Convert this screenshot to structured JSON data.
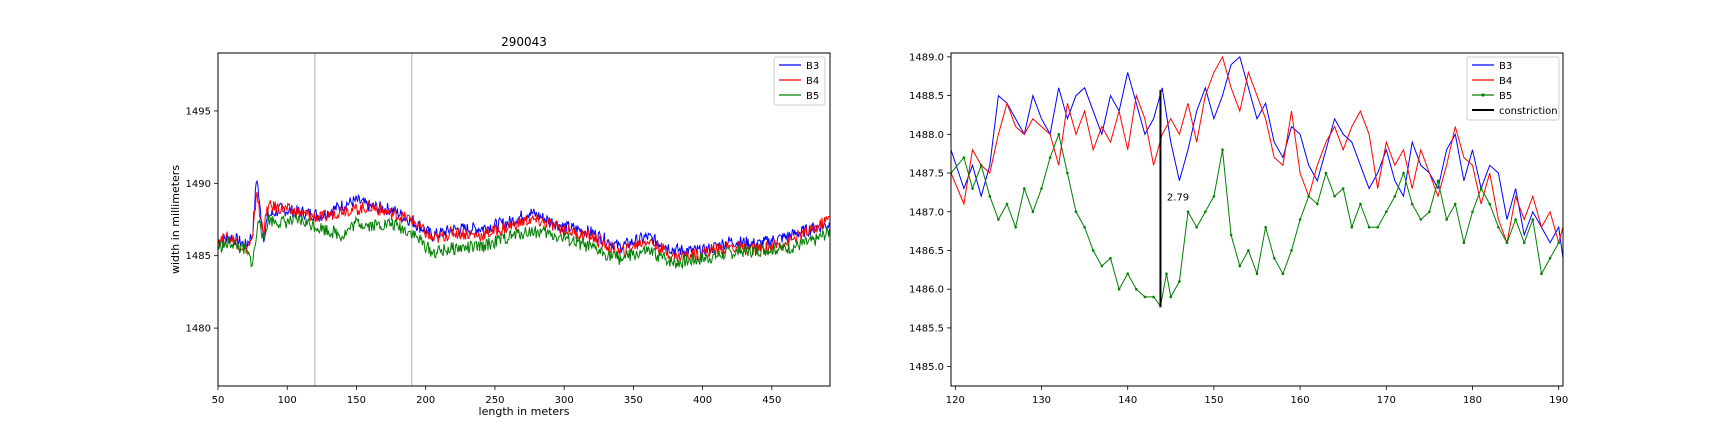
{
  "figure": {
    "colors": {
      "B3": "#0000ff",
      "B4": "#ff0000",
      "B5": "#008000",
      "constriction": "#000000",
      "vline": "#9e9e9e"
    }
  },
  "chart_data": [
    {
      "type": "line",
      "title": "290043",
      "xlabel": "length in meters",
      "ylabel": "width in millimeters",
      "xlim": [
        50,
        492
      ],
      "ylim": [
        1476,
        1499
      ],
      "xticks": [
        50,
        100,
        150,
        200,
        250,
        300,
        350,
        400,
        450
      ],
      "yticks": [
        1480,
        1485,
        1490,
        1495
      ],
      "legend_position": "top-right",
      "vertical_lines": [
        120,
        190
      ],
      "series": [
        {
          "name": "B3",
          "color": "#0000ff",
          "x": [
            50,
            60,
            70,
            75,
            78,
            80,
            83,
            86,
            95,
            110,
            125,
            140,
            150,
            160,
            175,
            190,
            205,
            220,
            240,
            260,
            275,
            285,
            300,
            320,
            340,
            360,
            380,
            400,
            420,
            440,
            460,
            480,
            492
          ],
          "y": [
            1486.0,
            1486.3,
            1485.7,
            1486.5,
            1490.6,
            1488.5,
            1486.3,
            1487.7,
            1488.2,
            1488.0,
            1487.8,
            1488.5,
            1488.8,
            1488.4,
            1488.2,
            1487.4,
            1486.4,
            1486.8,
            1486.9,
            1487.3,
            1488.0,
            1487.6,
            1487.0,
            1486.6,
            1485.6,
            1486.3,
            1485.4,
            1485.3,
            1486.0,
            1485.8,
            1486.3,
            1486.9,
            1487.2
          ]
        },
        {
          "name": "B4",
          "color": "#ff0000",
          "x": [
            50,
            60,
            70,
            75,
            78,
            80,
            83,
            86,
            95,
            110,
            125,
            140,
            150,
            160,
            175,
            190,
            205,
            220,
            240,
            260,
            275,
            285,
            300,
            320,
            340,
            360,
            380,
            400,
            420,
            440,
            460,
            480,
            492
          ],
          "y": [
            1486.1,
            1486.2,
            1485.5,
            1486.0,
            1489.7,
            1487.8,
            1486.8,
            1488.4,
            1488.3,
            1487.9,
            1487.6,
            1488.2,
            1488.2,
            1488.4,
            1487.9,
            1487.5,
            1486.1,
            1486.6,
            1486.4,
            1487.0,
            1487.5,
            1487.3,
            1486.8,
            1486.3,
            1485.2,
            1486.1,
            1484.9,
            1485.2,
            1485.6,
            1485.4,
            1485.9,
            1486.8,
            1487.6
          ]
        },
        {
          "name": "B5",
          "color": "#008000",
          "x": [
            50,
            60,
            70,
            75,
            78,
            80,
            83,
            86,
            95,
            110,
            125,
            140,
            150,
            160,
            175,
            190,
            205,
            220,
            240,
            260,
            275,
            285,
            300,
            320,
            340,
            360,
            380,
            400,
            420,
            440,
            460,
            480,
            492
          ],
          "y": [
            1485.6,
            1485.9,
            1485.3,
            1484.5,
            1486.5,
            1487.8,
            1485.8,
            1487.5,
            1487.3,
            1487.4,
            1486.9,
            1486.4,
            1487.3,
            1487.1,
            1487.2,
            1486.6,
            1485.2,
            1485.5,
            1485.6,
            1486.3,
            1486.7,
            1486.6,
            1486.2,
            1485.5,
            1484.8,
            1485.3,
            1484.5,
            1484.8,
            1485.2,
            1485.4,
            1485.5,
            1486.0,
            1486.7
          ]
        }
      ]
    },
    {
      "type": "line",
      "title": "",
      "xlabel": "",
      "ylabel": "",
      "xlim": [
        119.5,
        190.5
      ],
      "ylim": [
        1484.75,
        1489.05
      ],
      "xticks": [
        120,
        130,
        140,
        150,
        160,
        170,
        180,
        190
      ],
      "yticks": [
        1485.0,
        1485.5,
        1486.0,
        1486.5,
        1487.0,
        1487.5,
        1488.0,
        1488.5,
        1489.0
      ],
      "legend_position": "top-right",
      "annotation": {
        "text": "2.79",
        "x": 144.2,
        "y": 1487.2
      },
      "constriction": {
        "x": 143.8,
        "y_low": 1485.78,
        "y_high": 1488.57
      },
      "series": [
        {
          "name": "B3",
          "color": "#0000ff",
          "x": [
            119.5,
            121,
            122,
            123,
            124,
            125,
            126,
            127,
            128,
            129,
            130,
            131,
            132,
            133,
            134,
            135,
            136,
            137,
            138,
            139,
            140,
            141,
            142,
            143,
            144,
            145,
            146,
            147,
            148,
            149,
            150,
            151,
            152,
            153,
            154,
            155,
            156,
            157,
            158,
            159,
            160,
            161,
            162,
            163,
            164,
            165,
            166,
            167,
            168,
            169,
            170,
            171,
            172,
            173,
            174,
            175,
            176,
            177,
            178,
            179,
            180,
            181,
            182,
            183,
            184,
            185,
            186,
            187,
            188,
            189,
            190,
            190.5
          ],
          "y": [
            1487.8,
            1487.3,
            1487.6,
            1487.2,
            1487.6,
            1488.5,
            1488.4,
            1488.2,
            1488.0,
            1488.5,
            1488.2,
            1488.0,
            1488.6,
            1488.2,
            1488.5,
            1488.6,
            1488.3,
            1488.0,
            1488.5,
            1488.3,
            1488.8,
            1488.4,
            1488.0,
            1488.2,
            1488.6,
            1487.9,
            1487.4,
            1487.8,
            1488.3,
            1488.6,
            1488.2,
            1488.5,
            1488.9,
            1489.0,
            1488.6,
            1488.2,
            1488.4,
            1487.9,
            1487.7,
            1488.1,
            1488.0,
            1487.6,
            1487.4,
            1487.8,
            1488.2,
            1488.0,
            1487.9,
            1487.6,
            1487.3,
            1487.5,
            1487.8,
            1487.4,
            1487.2,
            1487.9,
            1487.6,
            1487.5,
            1487.3,
            1487.8,
            1488.0,
            1487.4,
            1487.8,
            1487.3,
            1487.6,
            1487.5,
            1486.9,
            1487.3,
            1486.7,
            1487.0,
            1486.8,
            1486.6,
            1486.8,
            1486.4
          ]
        },
        {
          "name": "B4",
          "color": "#ff0000",
          "x": [
            119.5,
            121,
            122,
            123,
            124,
            125,
            126,
            127,
            128,
            129,
            130,
            131,
            132,
            133,
            134,
            135,
            136,
            137,
            138,
            139,
            140,
            141,
            142,
            143,
            144,
            145,
            146,
            147,
            148,
            149,
            150,
            151,
            152,
            153,
            154,
            155,
            156,
            157,
            158,
            159,
            160,
            161,
            162,
            163,
            164,
            165,
            166,
            167,
            168,
            169,
            170,
            171,
            172,
            173,
            174,
            175,
            176,
            177,
            178,
            179,
            180,
            181,
            182,
            183,
            184,
            185,
            186,
            187,
            188,
            189,
            190,
            190.5
          ],
          "y": [
            1487.5,
            1487.1,
            1487.8,
            1487.6,
            1487.5,
            1488.0,
            1488.4,
            1488.1,
            1488.0,
            1488.2,
            1488.1,
            1488.0,
            1487.6,
            1488.4,
            1488.0,
            1488.3,
            1487.8,
            1488.1,
            1487.9,
            1488.3,
            1487.8,
            1488.5,
            1488.2,
            1487.6,
            1488.0,
            1488.2,
            1488.0,
            1488.4,
            1487.9,
            1488.5,
            1488.8,
            1489.0,
            1488.6,
            1488.3,
            1488.8,
            1488.5,
            1488.2,
            1487.7,
            1487.6,
            1488.3,
            1487.5,
            1487.2,
            1487.6,
            1487.9,
            1488.1,
            1487.8,
            1488.1,
            1488.3,
            1488.0,
            1487.3,
            1487.9,
            1487.6,
            1487.8,
            1487.3,
            1487.8,
            1487.5,
            1487.2,
            1487.6,
            1488.1,
            1487.7,
            1487.6,
            1487.1,
            1487.5,
            1486.9,
            1486.6,
            1487.2,
            1486.9,
            1487.2,
            1486.8,
            1487.0,
            1486.6,
            1486.8
          ]
        },
        {
          "name": "B5",
          "color": "#008000",
          "x": [
            119.5,
            121,
            122,
            123,
            124,
            125,
            126,
            127,
            128,
            129,
            130,
            131,
            132,
            133,
            134,
            135,
            136,
            137,
            138,
            139,
            140,
            141,
            142,
            143,
            143.8,
            144.5,
            145,
            146,
            147,
            148,
            149,
            150,
            151,
            152,
            153,
            154,
            155,
            156,
            157,
            158,
            159,
            160,
            161,
            162,
            163,
            164,
            165,
            166,
            167,
            168,
            169,
            170,
            171,
            172,
            173,
            174,
            175,
            176,
            177,
            178,
            179,
            180,
            181,
            182,
            183,
            184,
            185,
            186,
            187,
            188,
            189,
            190
          ],
          "y": [
            1487.5,
            1487.7,
            1487.3,
            1487.6,
            1487.2,
            1486.9,
            1487.1,
            1486.8,
            1487.3,
            1487.0,
            1487.3,
            1487.7,
            1488.0,
            1487.5,
            1487.0,
            1486.8,
            1486.5,
            1486.3,
            1486.4,
            1486.0,
            1486.2,
            1486.0,
            1485.9,
            1485.9,
            1485.78,
            1486.2,
            1485.9,
            1486.1,
            1487.0,
            1486.8,
            1487.0,
            1487.2,
            1487.8,
            1486.7,
            1486.3,
            1486.5,
            1486.2,
            1486.8,
            1486.4,
            1486.2,
            1486.5,
            1486.9,
            1487.2,
            1487.1,
            1487.5,
            1487.2,
            1487.3,
            1486.8,
            1487.1,
            1486.8,
            1486.8,
            1487.0,
            1487.2,
            1487.5,
            1487.1,
            1486.9,
            1487.0,
            1487.4,
            1486.9,
            1487.1,
            1486.6,
            1487.0,
            1487.3,
            1487.1,
            1486.8,
            1486.6,
            1486.9,
            1486.6,
            1486.9,
            1486.2,
            1486.4,
            1486.6
          ]
        }
      ]
    }
  ]
}
